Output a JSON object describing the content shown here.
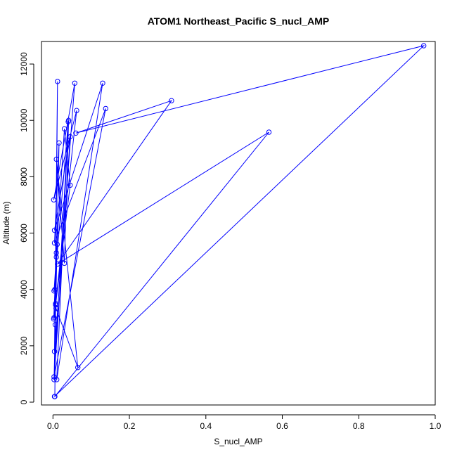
{
  "chart_data": {
    "type": "line",
    "title": "ATOM1 Northeast_Pacific S_nucl_AMP",
    "xlabel": "S_nucl_AMP",
    "ylabel": "Altitude (m)",
    "xlim": [
      -0.03,
      1.0
    ],
    "ylim": [
      -100,
      12800
    ],
    "xticks": [
      0.0,
      0.2,
      0.4,
      0.6,
      0.8,
      1.0
    ],
    "xtick_labels": [
      "0.0",
      "0.2",
      "0.4",
      "0.6",
      "0.8",
      "1.0"
    ],
    "yticks": [
      0,
      2000,
      4000,
      6000,
      8000,
      10000,
      12000
    ],
    "ytick_labels": [
      "0",
      "2000",
      "4000",
      "6000",
      "8000",
      "10000",
      "12000"
    ],
    "grid": false,
    "legend": "none",
    "series": [
      {
        "color": "#0000ff",
        "markers": "open-circle",
        "points": [
          {
            "x": 0.004,
            "y": 200
          },
          {
            "x": 0.97,
            "y": 12650
          },
          {
            "x": 0.06,
            "y": 9550
          },
          {
            "x": 0.31,
            "y": 10700
          },
          {
            "x": 0.012,
            "y": 4900
          },
          {
            "x": 0.565,
            "y": 9580
          },
          {
            "x": 0.005,
            "y": 200
          },
          {
            "x": 0.007,
            "y": 3500
          },
          {
            "x": 0.012,
            "y": 11380
          },
          {
            "x": 0.004,
            "y": 1800
          },
          {
            "x": 0.057,
            "y": 11320
          },
          {
            "x": 0.002,
            "y": 7180
          },
          {
            "x": 0.062,
            "y": 10350
          },
          {
            "x": 0.003,
            "y": 3000
          },
          {
            "x": 0.045,
            "y": 7700
          },
          {
            "x": 0.03,
            "y": 9700
          },
          {
            "x": 0.003,
            "y": 3950
          },
          {
            "x": 0.04,
            "y": 9950
          },
          {
            "x": 0.01,
            "y": 800
          },
          {
            "x": 0.13,
            "y": 11320
          },
          {
            "x": 0.004,
            "y": 6100
          },
          {
            "x": 0.045,
            "y": 9420
          },
          {
            "x": 0.003,
            "y": 800
          },
          {
            "x": 0.016,
            "y": 9200
          },
          {
            "x": 0.004,
            "y": 5650
          },
          {
            "x": 0.138,
            "y": 10420
          },
          {
            "x": 0.003,
            "y": 900
          },
          {
            "x": 0.041,
            "y": 10000
          },
          {
            "x": 0.03,
            "y": 4930
          },
          {
            "x": 0.009,
            "y": 8620
          },
          {
            "x": 0.065,
            "y": 1230
          },
          {
            "x": 0.008,
            "y": 3330
          },
          {
            "x": 0.002,
            "y": 2950
          },
          {
            "x": 0.009,
            "y": 5300
          },
          {
            "x": 0.007,
            "y": 3450
          },
          {
            "x": 0.005,
            "y": 4000
          },
          {
            "x": 0.006,
            "y": 2750
          },
          {
            "x": 0.011,
            "y": 5600
          },
          {
            "x": 0.009,
            "y": 5150
          }
        ]
      }
    ]
  }
}
